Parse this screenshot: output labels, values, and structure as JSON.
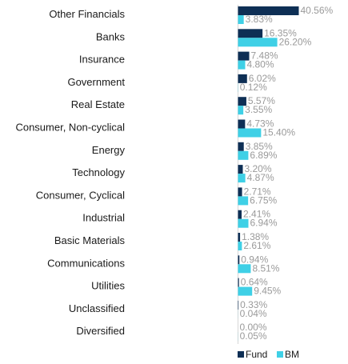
{
  "chart_data": {
    "type": "bar",
    "orientation": "horizontal",
    "categories": [
      "Other Financials",
      "Banks",
      "Insurance",
      "Government",
      "Real Estate",
      "Consumer, Non-cyclical",
      "Energy",
      "Technology",
      "Consumer, Cyclical",
      "Industrial",
      "Basic Materials",
      "Communications",
      "Utilities",
      "Unclassified",
      "Diversified"
    ],
    "series": [
      {
        "name": "Fund",
        "color": "#0e2f55",
        "values": [
          40.56,
          16.35,
          7.48,
          6.02,
          5.57,
          4.73,
          3.85,
          3.2,
          2.71,
          2.41,
          1.38,
          0.94,
          0.64,
          0.33,
          0.0
        ],
        "labels": [
          "40.56%",
          "16.35%",
          "7.48%",
          "6.02%",
          "5.57%",
          "4.73%",
          "3.85%",
          "3.20%",
          "2.71%",
          "2.41%",
          "1.38%",
          "0.94%",
          "0.64%",
          "0.33%",
          "0.00%"
        ]
      },
      {
        "name": "BM",
        "color": "#3fd0e6",
        "values": [
          3.83,
          26.2,
          4.8,
          0.12,
          3.55,
          15.4,
          6.89,
          4.87,
          6.75,
          6.94,
          2.61,
          8.51,
          9.45,
          0.04,
          0.05
        ],
        "labels": [
          "3.83%",
          "26.20%",
          "4.80%",
          "0.12%",
          "3.55%",
          "15.40%",
          "6.89%",
          "4.87%",
          "6.75%",
          "6.94%",
          "2.61%",
          "8.51%",
          "9.45%",
          "0.04%",
          "0.05%"
        ]
      }
    ],
    "xlim": [
      0,
      40.56
    ],
    "grid": false,
    "legend_position": "bottom-right",
    "value_label_color": "#9a9a9a"
  }
}
